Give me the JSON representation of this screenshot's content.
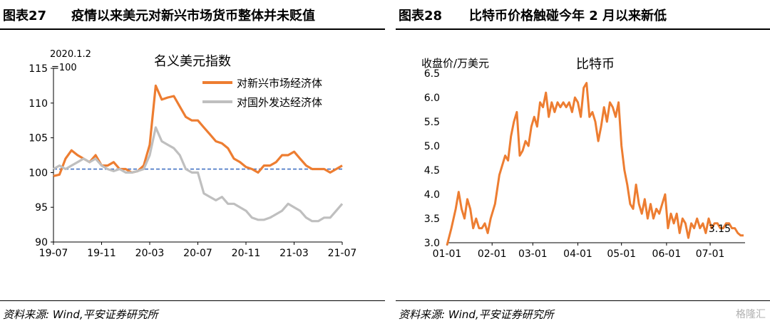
{
  "charts": [
    {
      "figure_no": "图表27",
      "figure_title": "疫情以来美元对新兴市场货币整体并未贬值",
      "source": "资料来源: Wind,平安证券研究所",
      "chart_data": {
        "type": "line",
        "title": "名义美元指数",
        "base_note_line1": "2020.1.2",
        "base_note_line2": "=100",
        "ylim": [
          90,
          115
        ],
        "yticks": [
          90,
          95,
          100,
          105,
          110,
          115
        ],
        "x_ticks": [
          "19-07",
          "19-11",
          "20-03",
          "20-07",
          "20-11",
          "21-03",
          "21-07"
        ],
        "x_range": [
          0,
          24
        ],
        "x_tick_positions": [
          0,
          4,
          8,
          12,
          16,
          20,
          24
        ],
        "reference_line": 100.5,
        "legend_position": "top-right",
        "series": [
          {
            "name": "对新兴市场经济体",
            "color": "#ED7D31",
            "x": [
              0,
              0.5,
              1,
              1.5,
              2,
              2.5,
              3,
              3.5,
              4,
              4.5,
              5,
              5.5,
              6,
              6.5,
              7,
              7.5,
              8,
              8.5,
              9,
              9.5,
              10,
              10.5,
              11,
              11.5,
              12,
              12.5,
              13,
              13.5,
              14,
              14.5,
              15,
              15.5,
              16,
              16.5,
              17,
              17.5,
              18,
              18.5,
              19,
              19.5,
              20,
              20.5,
              21,
              21.5,
              22,
              22.5,
              23,
              23.5,
              24
            ],
            "values": [
              99.5,
              99.7,
              102.0,
              103.2,
              102.5,
              102.0,
              101.5,
              102.5,
              101.0,
              101.0,
              101.5,
              100.5,
              100.5,
              100.0,
              100.2,
              101.0,
              104.0,
              112.5,
              110.5,
              110.8,
              111.0,
              109.5,
              108.0,
              107.5,
              107.5,
              106.5,
              105.5,
              104.5,
              104.2,
              103.5,
              102.0,
              101.5,
              100.8,
              100.5,
              100.0,
              101.0,
              101.0,
              101.5,
              102.5,
              102.5,
              103.0,
              102.0,
              101.0,
              100.5,
              100.5,
              100.5,
              100.0,
              100.5,
              101.0
            ]
          },
          {
            "name": "对国外发达经济体",
            "color": "#BFBFBF",
            "x": [
              0,
              0.5,
              1,
              1.5,
              2,
              2.5,
              3,
              3.5,
              4,
              4.5,
              5,
              5.5,
              6,
              6.5,
              7,
              7.5,
              8,
              8.5,
              9,
              9.5,
              10,
              10.5,
              11,
              11.5,
              12,
              12.5,
              13,
              13.5,
              14,
              14.5,
              15,
              15.5,
              16,
              16.5,
              17,
              17.5,
              18,
              18.5,
              19,
              19.5,
              20,
              20.5,
              21,
              21.5,
              22,
              22.5,
              23,
              23.5,
              24
            ],
            "values": [
              100.5,
              101.0,
              100.5,
              101.0,
              101.5,
              102.0,
              101.5,
              102.0,
              101.0,
              100.5,
              100.2,
              100.5,
              100.0,
              100.0,
              100.2,
              100.5,
              102.5,
              106.5,
              104.5,
              104.0,
              103.5,
              102.5,
              100.5,
              100.0,
              100.0,
              97.0,
              96.5,
              96.0,
              96.5,
              95.5,
              95.5,
              95.0,
              94.5,
              93.5,
              93.2,
              93.2,
              93.5,
              94.0,
              94.5,
              95.5,
              95.0,
              94.5,
              93.5,
              93.0,
              93.0,
              93.5,
              93.5,
              94.5,
              95.5
            ]
          }
        ]
      }
    },
    {
      "figure_no": "图表28",
      "figure_title": "比特币价格触碰今年 2 月以来新低",
      "source": "资料来源: Wind,平安证券研究所",
      "watermark": "格隆汇",
      "chart_data": {
        "type": "line",
        "title": "比特币",
        "ylabel": "收盘价/万美元",
        "ylim": [
          3.0,
          6.5
        ],
        "yticks": [
          3.0,
          3.5,
          4.0,
          4.5,
          5.0,
          5.5,
          6.0,
          6.5
        ],
        "x_ticks": [
          "01-01",
          "02-01",
          "03-01",
          "04-01",
          "05-01",
          "06-01",
          "07-01"
        ],
        "x_tick_positions": [
          0,
          31,
          59,
          90,
          120,
          151,
          181
        ],
        "x_range": [
          0,
          205
        ],
        "end_label": "3.15",
        "series": [
          {
            "name": "比特币",
            "color": "#ED7D31",
            "x": [
              0,
              3,
              6,
              8,
              10,
              12,
              14,
              16,
              18,
              20,
              22,
              24,
              26,
              28,
              30,
              33,
              36,
              38,
              40,
              42,
              44,
              46,
              48,
              50,
              52,
              54,
              56,
              58,
              60,
              62,
              64,
              66,
              68,
              70,
              72,
              74,
              76,
              78,
              80,
              82,
              84,
              86,
              88,
              90,
              92,
              94,
              96,
              98,
              100,
              102,
              104,
              106,
              108,
              110,
              112,
              114,
              116,
              118,
              120,
              122,
              124,
              126,
              128,
              130,
              132,
              134,
              136,
              138,
              140,
              142,
              144,
              146,
              148,
              150,
              152,
              154,
              156,
              158,
              160,
              162,
              164,
              166,
              168,
              170,
              172,
              174,
              176,
              178,
              180,
              182,
              184,
              186,
              188,
              190,
              192,
              194,
              196,
              198,
              200,
              202,
              204
            ],
            "values": [
              2.95,
              3.3,
              3.7,
              4.05,
              3.7,
              3.5,
              3.9,
              3.7,
              3.3,
              3.5,
              3.3,
              3.3,
              3.4,
              3.2,
              3.5,
              3.8,
              4.4,
              4.6,
              4.8,
              4.7,
              5.2,
              5.5,
              5.7,
              4.8,
              4.9,
              5.1,
              5.0,
              5.4,
              5.6,
              5.4,
              5.9,
              5.8,
              6.1,
              5.6,
              5.9,
              5.7,
              5.9,
              5.8,
              5.9,
              5.8,
              5.9,
              5.7,
              6.0,
              5.9,
              5.6,
              6.2,
              6.3,
              5.6,
              5.7,
              5.5,
              5.1,
              5.4,
              5.8,
              5.5,
              5.9,
              5.8,
              5.6,
              5.9,
              5.0,
              4.5,
              4.2,
              3.8,
              3.7,
              4.2,
              3.8,
              3.6,
              3.9,
              3.5,
              3.8,
              3.5,
              3.7,
              3.6,
              3.8,
              4.0,
              3.3,
              3.6,
              3.4,
              3.6,
              3.2,
              3.5,
              3.4,
              3.1,
              3.4,
              3.3,
              3.5,
              3.3,
              3.4,
              3.2,
              3.5,
              3.3,
              3.4,
              3.4,
              3.3,
              3.3,
              3.4,
              3.4,
              3.3,
              3.3,
              3.2,
              3.15,
              3.15
            ]
          }
        ]
      }
    }
  ]
}
